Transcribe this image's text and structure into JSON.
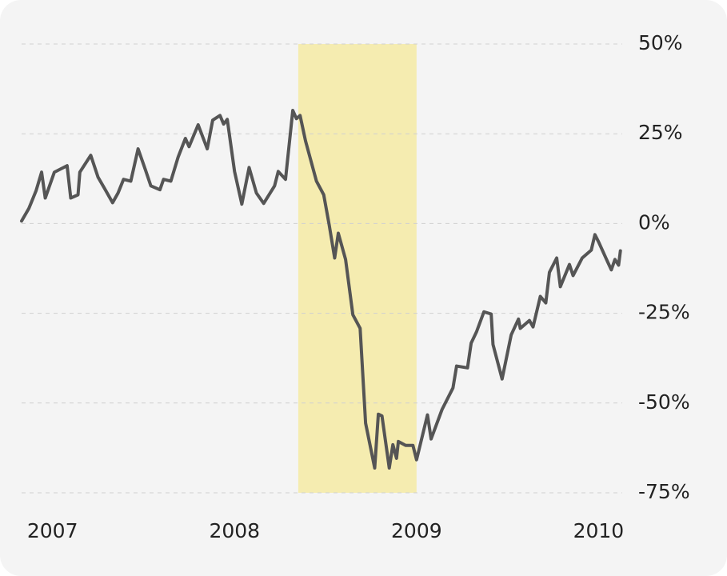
{
  "chart_data": {
    "type": "line",
    "x": [
      2006.83,
      2006.87,
      2006.91,
      2006.94,
      2006.96,
      2007.01,
      2007.08,
      2007.1,
      2007.14,
      2007.15,
      2007.21,
      2007.25,
      2007.29,
      2007.33,
      2007.36,
      2007.39,
      2007.43,
      2007.47,
      2007.51,
      2007.54,
      2007.59,
      2007.61,
      2007.65,
      2007.69,
      2007.73,
      2007.75,
      2007.8,
      2007.85,
      2007.88,
      2007.92,
      2007.94,
      2007.96,
      2008.0,
      2008.04,
      2008.08,
      2008.12,
      2008.16,
      2008.22,
      2008.24,
      2008.28,
      2008.32,
      2008.34,
      2008.36,
      2008.39,
      2008.45,
      2008.49,
      2008.52,
      2008.55,
      2008.57,
      2008.61,
      2008.65,
      2008.69,
      2008.72,
      2008.77,
      2008.79,
      2008.81,
      2008.85,
      2008.87,
      2008.89,
      2008.9,
      2008.94,
      2008.98,
      2009.0,
      2009.06,
      2009.08,
      2009.14,
      2009.2,
      2009.22,
      2009.28,
      2009.3,
      2009.33,
      2009.37,
      2009.41,
      2009.42,
      2009.47,
      2009.52,
      2009.56,
      2009.57,
      2009.62,
      2009.64,
      2009.68,
      2009.71,
      2009.73,
      2009.77,
      2009.79,
      2009.84,
      2009.86,
      2009.91,
      2009.96,
      2009.98,
      2010.0,
      2010.05,
      2010.07,
      2010.09,
      2010.11,
      2010.12
    ],
    "series": [
      {
        "color": "#555555",
        "values": [
          0.7,
          4.2,
          9.2,
          14.3,
          7.1,
          14.3,
          16.1,
          7.1,
          8.0,
          14.3,
          19.0,
          12.9,
          9.4,
          5.8,
          8.5,
          12.3,
          11.8,
          20.8,
          15.0,
          10.5,
          9.4,
          12.3,
          11.8,
          18.5,
          23.7,
          21.4,
          27.5,
          20.8,
          28.8,
          30.1,
          27.7,
          29.0,
          14.5,
          5.4,
          15.6,
          8.5,
          5.6,
          10.5,
          14.5,
          12.3,
          31.5,
          29.2,
          30.1,
          23.0,
          11.8,
          8.0,
          -0.4,
          -9.6,
          -2.7,
          -10.0,
          -25.4,
          -29.2,
          -55.6,
          -68.1,
          -53.1,
          -53.6,
          -68.1,
          -61.6,
          -65.4,
          -60.7,
          -61.8,
          -61.8,
          -65.8,
          -53.3,
          -60.0,
          -51.8,
          -45.8,
          -39.7,
          -40.2,
          -33.3,
          -30.1,
          -24.6,
          -25.2,
          -33.7,
          -43.3,
          -31.0,
          -26.6,
          -29.2,
          -27.0,
          -28.8,
          -20.3,
          -22.1,
          -13.6,
          -9.6,
          -17.6,
          -11.4,
          -14.5,
          -9.6,
          -7.4,
          -3.1,
          -5.1,
          -10.7,
          -12.9,
          -10.0,
          -11.6,
          -7.6
        ]
      }
    ],
    "xlim": [
      2006.83,
      2010.13
    ],
    "xticks": [
      2007,
      2008,
      2009,
      2010
    ],
    "ylim": [
      -75,
      50
    ],
    "yticks": [
      {
        "value": 50,
        "label": "50%"
      },
      {
        "value": 25,
        "label": "25%"
      },
      {
        "value": 0,
        "label": "0%"
      },
      {
        "value": -25,
        "label": "-25%"
      },
      {
        "value": -50,
        "label": "-50%"
      },
      {
        "value": -75,
        "label": "-75%"
      }
    ],
    "highlight": {
      "x": [
        2008.35,
        2009.0
      ],
      "color": "#f5ecb0"
    },
    "grid": true
  }
}
